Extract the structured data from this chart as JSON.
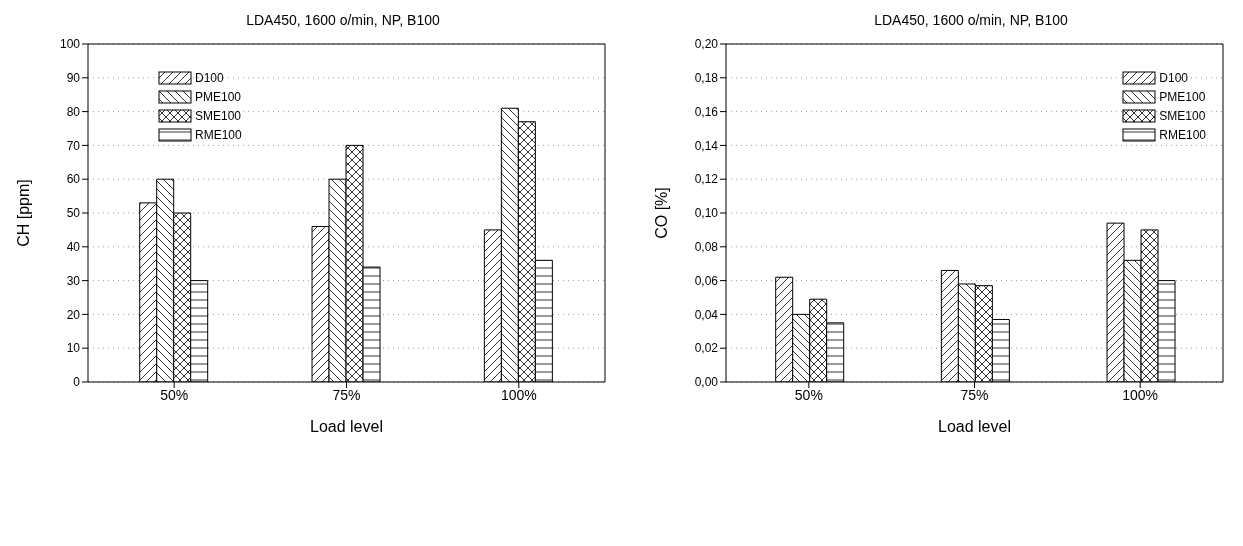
{
  "chart_data": [
    {
      "type": "bar",
      "title": "LDA450, 1600 o/min, NP, B100",
      "xlabel": "Load level",
      "ylabel": "CH [ppm]",
      "categories": [
        "50%",
        "75%",
        "100%"
      ],
      "series": [
        {
          "name": "D100",
          "color": "#000000",
          "values": [
            53,
            46,
            45
          ]
        },
        {
          "name": "PME100",
          "color": "#000000",
          "values": [
            60,
            60,
            81
          ]
        },
        {
          "name": "SME100",
          "color": "#000000",
          "values": [
            50,
            70,
            77
          ]
        },
        {
          "name": "RME100",
          "color": "#000000",
          "values": [
            30,
            34,
            36
          ]
        }
      ],
      "ylim": [
        0,
        100
      ],
      "yticks": [
        0,
        10,
        20,
        30,
        40,
        50,
        60,
        70,
        80,
        90,
        100
      ],
      "grid": "y",
      "legend": "top left"
    },
    {
      "type": "bar",
      "title": "LDA450, 1600 o/min, NP, B100",
      "xlabel": "Load level",
      "ylabel": "CO [%]",
      "categories": [
        "50%",
        "75%",
        "100%"
      ],
      "series": [
        {
          "name": "D100",
          "color": "#000000",
          "values": [
            0.062,
            0.066,
            0.094
          ]
        },
        {
          "name": "PME100",
          "color": "#000000",
          "values": [
            0.04,
            0.058,
            0.072
          ]
        },
        {
          "name": "SME100",
          "color": "#000000",
          "values": [
            0.049,
            0.057,
            0.09
          ]
        },
        {
          "name": "RME100",
          "color": "#000000",
          "values": [
            0.035,
            0.037,
            0.06
          ]
        }
      ],
      "ylim": [
        0,
        0.2
      ],
      "yticks": [
        {
          "value": 0,
          "label": "0,00"
        },
        {
          "value": 0.02,
          "label": "0,02"
        },
        {
          "value": 0.04,
          "label": "0,04"
        },
        {
          "value": 0.06,
          "label": "0,06"
        },
        {
          "value": 0.08,
          "label": "0,08"
        },
        {
          "value": 0.1,
          "label": "0,10"
        },
        {
          "value": 0.12,
          "label": "0,12"
        },
        {
          "value": 0.14,
          "label": "0,14"
        },
        {
          "value": 0.16,
          "label": "0,16"
        },
        {
          "value": 0.18,
          "label": "0,18"
        },
        {
          "value": 0.2,
          "label": "0,20"
        }
      ],
      "grid": "y",
      "legend": "top right"
    }
  ]
}
